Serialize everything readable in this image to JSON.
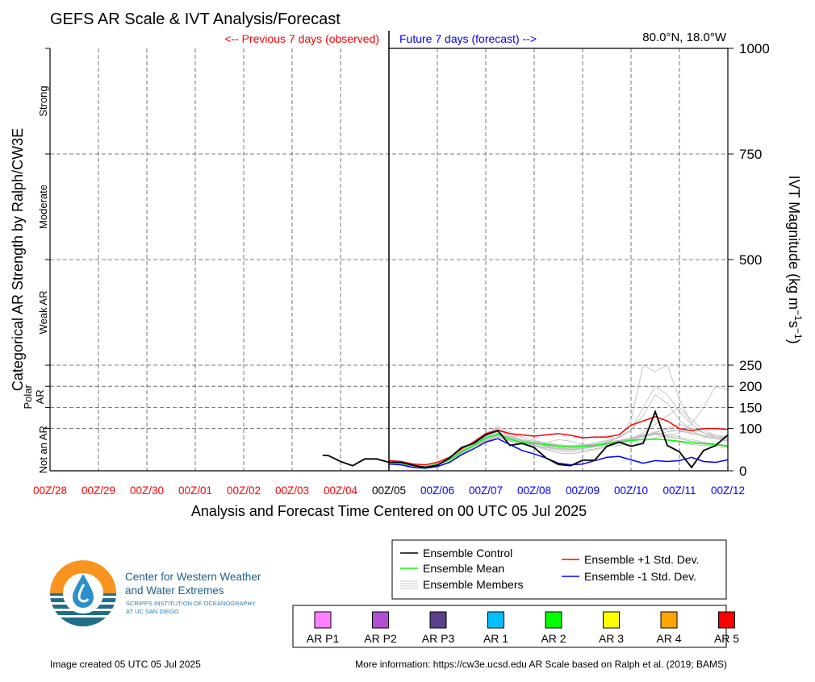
{
  "header": {
    "title": "GEFS AR Scale & IVT Analysis/Forecast",
    "prev_label": "<-- Previous 7 days (observed)",
    "future_label": "Future 7 days (forecast) -->",
    "location": "80.0°N, 18.0°W"
  },
  "colors": {
    "observed": "#ff0000",
    "forecast": "#0000ff",
    "control": "#000000",
    "mean": "#00ff00",
    "plus_sd": "#ff0000",
    "minus_sd": "#0000ff",
    "members": "#bbbbbb"
  },
  "left_axis": {
    "label": "Categorical AR Strength by Ralph/CW3E",
    "categories": [
      {
        "label": "Strong"
      },
      {
        "label": "Moderate"
      },
      {
        "label": "Weak AR"
      },
      {
        "label": "Polar AR"
      },
      {
        "label": "Not an AR"
      }
    ]
  },
  "chart_data": {
    "type": "line",
    "title": "GEFS AR Scale & IVT Analysis/Forecast",
    "xlabel": "Analysis and Forecast Time Centered on 00 UTC 05 Jul 2025",
    "ylabel": "IVT Magnitude (kg m^-1 s^-1)",
    "ylabel_main": "IVT Magnitude (kg m",
    "ylabel_sup1": "−1",
    "ylabel_mid": "s",
    "ylabel_sup2": "−1",
    "ylabel_end": ")",
    "x_ticks": [
      "00Z/28",
      "00Z/29",
      "00Z/30",
      "00Z/01",
      "00Z/02",
      "00Z/03",
      "00Z/04",
      "00Z/05",
      "00Z/06",
      "00Z/07",
      "00Z/08",
      "00Z/09",
      "00Z/10",
      "00Z/11",
      "00Z/12"
    ],
    "x_tick_days": [
      0,
      1,
      2,
      3,
      4,
      5,
      6,
      7,
      8,
      9,
      10,
      11,
      12,
      13,
      14
    ],
    "analysis_day": 7,
    "xlim": [
      0,
      14
    ],
    "y_ticks": [
      0,
      100,
      150,
      200,
      250,
      500,
      750,
      1000
    ],
    "ylim": [
      0,
      1000
    ],
    "grid": true,
    "legend_position": "bottom-right",
    "series": [
      {
        "name": "Ensemble Control",
        "x": [
          5.63,
          5.75,
          6.0,
          6.25,
          6.5,
          6.75,
          7.0,
          7.25,
          7.5,
          7.75,
          8.0,
          8.25,
          8.5,
          8.75,
          9.0,
          9.25,
          9.5,
          9.75,
          10.0,
          10.25,
          10.5,
          10.75,
          11.0,
          11.25,
          11.5,
          11.75,
          12.0,
          12.25,
          12.5,
          12.75,
          13.0,
          13.25,
          13.5,
          13.75,
          14.0
        ],
        "y": [
          37,
          36,
          22,
          12,
          28,
          28,
          20,
          20,
          13,
          8,
          13,
          30,
          55,
          65,
          85,
          95,
          60,
          65,
          55,
          30,
          15,
          12,
          25,
          25,
          58,
          68,
          58,
          65,
          140,
          60,
          45,
          8,
          48,
          60,
          85
        ]
      },
      {
        "name": "Ensemble Mean",
        "x": [
          7.0,
          7.25,
          7.5,
          7.75,
          8.0,
          8.25,
          8.5,
          8.75,
          9.0,
          9.25,
          9.5,
          9.75,
          10.0,
          10.25,
          10.5,
          10.75,
          11.0,
          11.25,
          11.5,
          11.75,
          12.0,
          12.25,
          12.5,
          12.75,
          13.0,
          13.25,
          13.5,
          13.75,
          14.0
        ],
        "y": [
          20,
          18,
          12,
          10,
          15,
          26,
          45,
          60,
          78,
          86,
          75,
          67,
          65,
          62,
          58,
          56,
          58,
          60,
          64,
          68,
          72,
          74,
          75,
          73,
          70,
          66,
          64,
          62,
          58
        ]
      },
      {
        "name": "Ensemble +1 Std. Dev.",
        "x": [
          7.0,
          7.25,
          7.5,
          7.75,
          8.0,
          8.25,
          8.5,
          8.75,
          9.0,
          9.25,
          9.5,
          9.75,
          10.0,
          10.25,
          10.5,
          10.75,
          11.0,
          11.25,
          11.5,
          11.75,
          12.0,
          12.25,
          12.5,
          12.75,
          13.0,
          13.25,
          13.5,
          13.75,
          14.0
        ],
        "y": [
          24,
          22,
          16,
          14,
          20,
          32,
          52,
          68,
          88,
          96,
          88,
          85,
          82,
          85,
          88,
          84,
          78,
          80,
          80,
          85,
          108,
          118,
          128,
          118,
          100,
          95,
          100,
          100,
          98
        ]
      },
      {
        "name": "Ensemble -1 Std. Dev.",
        "x": [
          7.0,
          7.25,
          7.5,
          7.75,
          8.0,
          8.25,
          8.5,
          8.75,
          9.0,
          9.25,
          9.5,
          9.75,
          10.0,
          10.25,
          10.5,
          10.75,
          11.0,
          11.25,
          11.5,
          11.75,
          12.0,
          12.25,
          12.5,
          12.75,
          13.0,
          13.25,
          13.5,
          13.75,
          14.0
        ],
        "y": [
          16,
          14,
          8,
          6,
          10,
          20,
          38,
          52,
          68,
          76,
          62,
          48,
          40,
          30,
          18,
          14,
          16,
          24,
          32,
          34,
          26,
          18,
          24,
          22,
          24,
          32,
          22,
          20,
          26
        ]
      }
    ],
    "members": [
      [
        20,
        16,
        10,
        8,
        14,
        26,
        44,
        62,
        86,
        105,
        92,
        70,
        58,
        55,
        50,
        48,
        52,
        60,
        70,
        78,
        95,
        130,
        180,
        160,
        120,
        95,
        80,
        75,
        70
      ],
      [
        20,
        18,
        12,
        10,
        16,
        28,
        46,
        58,
        72,
        80,
        70,
        62,
        60,
        66,
        74,
        70,
        62,
        58,
        66,
        80,
        120,
        250,
        235,
        250,
        170,
        110,
        90,
        80,
        70
      ],
      [
        20,
        17,
        11,
        9,
        15,
        25,
        42,
        60,
        76,
        90,
        78,
        66,
        60,
        52,
        46,
        44,
        48,
        52,
        58,
        64,
        70,
        74,
        76,
        72,
        68,
        62,
        60,
        58,
        55
      ],
      [
        20,
        18,
        13,
        11,
        17,
        30,
        50,
        70,
        90,
        100,
        88,
        80,
        72,
        66,
        60,
        58,
        60,
        62,
        68,
        72,
        78,
        82,
        86,
        80,
        76,
        70,
        66,
        62,
        60
      ],
      [
        20,
        18,
        12,
        10,
        14,
        24,
        40,
        56,
        70,
        80,
        72,
        64,
        58,
        50,
        42,
        40,
        44,
        50,
        56,
        60,
        64,
        70,
        78,
        84,
        90,
        110,
        150,
        200,
        190
      ],
      [
        20,
        18,
        12,
        10,
        15,
        26,
        44,
        60,
        80,
        88,
        76,
        68,
        64,
        62,
        58,
        56,
        58,
        62,
        66,
        70,
        76,
        90,
        110,
        130,
        150,
        120,
        96,
        84,
        76
      ],
      [
        20,
        18,
        12,
        10,
        16,
        27,
        46,
        62,
        80,
        86,
        80,
        72,
        68,
        64,
        60,
        58,
        60,
        66,
        72,
        80,
        96,
        150,
        200,
        180,
        140,
        110,
        90,
        80,
        70
      ],
      [
        20,
        17,
        11,
        9,
        14,
        24,
        42,
        58,
        74,
        82,
        70,
        62,
        58,
        56,
        52,
        50,
        52,
        56,
        60,
        66,
        72,
        80,
        90,
        100,
        110,
        100,
        90,
        84,
        80
      ],
      [
        20,
        18,
        12,
        10,
        15,
        26,
        46,
        64,
        82,
        92,
        82,
        74,
        70,
        66,
        62,
        60,
        62,
        64,
        68,
        72,
        78,
        86,
        90,
        86,
        80,
        74,
        68,
        64,
        60
      ],
      [
        20,
        18,
        12,
        10,
        16,
        28,
        48,
        66,
        86,
        96,
        84,
        72,
        66,
        60,
        54,
        50,
        52,
        58,
        64,
        70,
        76,
        82,
        88,
        82,
        76,
        70,
        66,
        62,
        58
      ],
      [
        20,
        17,
        11,
        9,
        15,
        25,
        43,
        58,
        74,
        84,
        74,
        66,
        62,
        58,
        54,
        52,
        54,
        58,
        62,
        68,
        74,
        80,
        86,
        92,
        96,
        90,
        84,
        80,
        76
      ],
      [
        20,
        18,
        12,
        10,
        15,
        26,
        45,
        60,
        78,
        88,
        78,
        70,
        66,
        62,
        58,
        55,
        56,
        60,
        64,
        70,
        76,
        84,
        92,
        98,
        94,
        88,
        82,
        78,
        74
      ]
    ]
  },
  "legend": {
    "control": "Ensemble Control",
    "mean": "Ensemble Mean",
    "members": "Ensemble Members",
    "plus_sd": "Ensemble +1 Std. Dev.",
    "minus_sd": "Ensemble -1 Std. Dev."
  },
  "ar_scale": [
    {
      "label": "AR P1",
      "color": "#ff80ff"
    },
    {
      "label": "AR P2",
      "color": "#b24fd1"
    },
    {
      "label": "AR P3",
      "color": "#5b3f8a"
    },
    {
      "label": "AR 1",
      "color": "#00bfff"
    },
    {
      "label": "AR 2",
      "color": "#00ff00"
    },
    {
      "label": "AR 3",
      "color": "#ffff00"
    },
    {
      "label": "AR 4",
      "color": "#ffa500"
    },
    {
      "label": "AR 5",
      "color": "#ff0000"
    }
  ],
  "logo": {
    "line1": "Center for Western Weather",
    "line2": "and Water Extremes",
    "line3": "SCRIPPS INSTITUTION OF OCEANOGRAPHY",
    "line4": "AT UC SAN DIEGO"
  },
  "footer": {
    "created": "Image created 05 UTC 05 Jul 2025",
    "more_info": "More information: https://cw3e.ucsd.edu AR Scale based on Ralph et al. (2019; BAMS)"
  }
}
